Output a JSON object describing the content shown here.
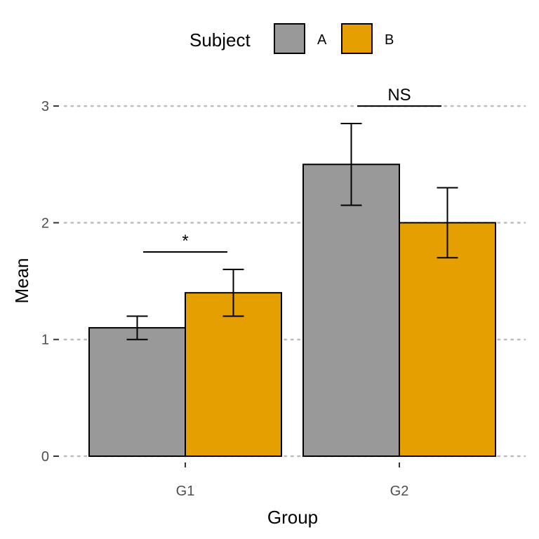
{
  "chart_data": {
    "type": "bar",
    "xlabel": "Group",
    "ylabel": "Mean",
    "categories": [
      "G1",
      "G2"
    ],
    "ylim": [
      0,
      3
    ],
    "yticks": [
      "0",
      "1",
      "2",
      "3"
    ],
    "grid": "horizontal-dotted",
    "legend": {
      "title": "Subject",
      "position": "top"
    },
    "series": [
      {
        "name": "A",
        "color": "#999999",
        "values": [
          1.1,
          2.5
        ],
        "error_low": [
          1.0,
          2.15
        ],
        "error_high": [
          1.2,
          2.85
        ]
      },
      {
        "name": "B",
        "color": "#E69F00",
        "values": [
          1.4,
          2.0
        ],
        "error_low": [
          1.2,
          1.7
        ],
        "error_high": [
          1.6,
          2.3
        ]
      }
    ],
    "annotations": [
      {
        "category": "G1",
        "label": "*",
        "y": 1.75
      },
      {
        "category": "G2",
        "label": "NS",
        "y": 3.0
      }
    ]
  }
}
